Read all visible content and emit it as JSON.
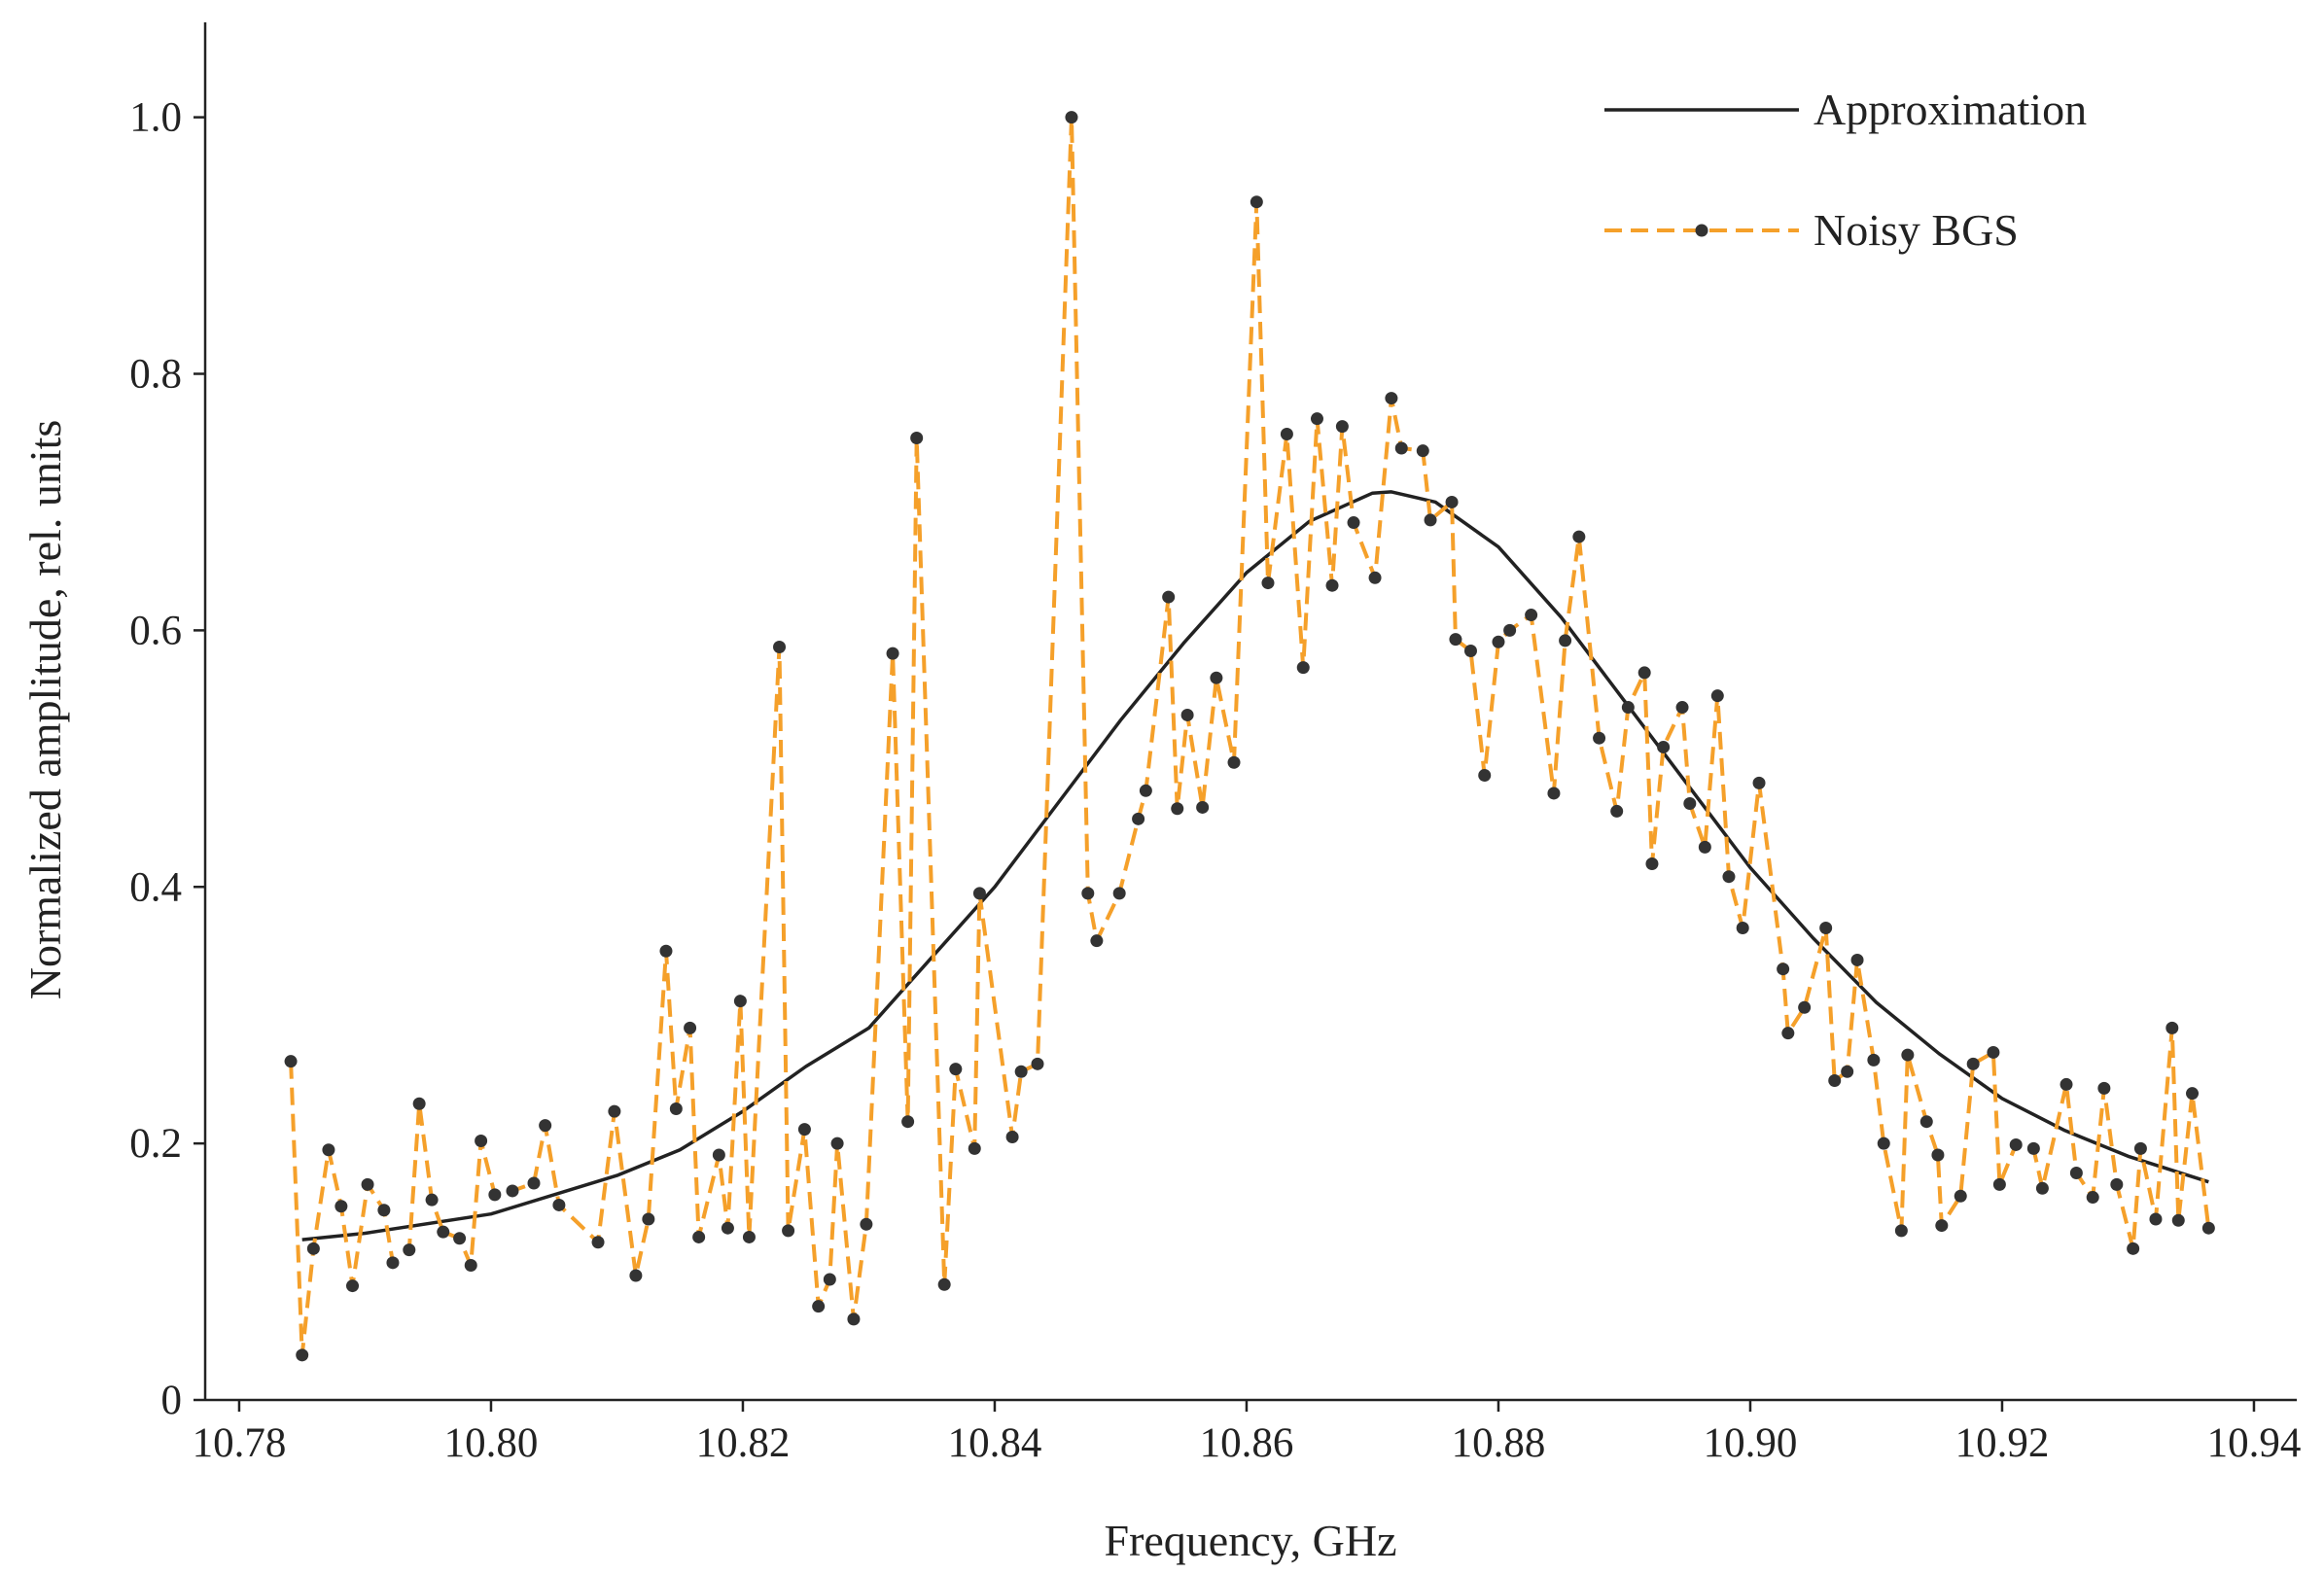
{
  "chart_data": {
    "type": "line",
    "xlabel": "Frequency, GHz",
    "ylabel": "Normalized amplitude, rel. units",
    "xlim": [
      10.7773,
      10.9434
    ],
    "ylim": [
      0,
      1.074
    ],
    "xticks": [
      {
        "value": 10.78,
        "label": "10.78"
      },
      {
        "value": 10.8,
        "label": "10.80"
      },
      {
        "value": 10.82,
        "label": "10.82"
      },
      {
        "value": 10.84,
        "label": "10.84"
      },
      {
        "value": 10.86,
        "label": "10.86"
      },
      {
        "value": 10.88,
        "label": "10.88"
      },
      {
        "value": 10.9,
        "label": "10.90"
      },
      {
        "value": 10.92,
        "label": "10.92"
      },
      {
        "value": 10.94,
        "label": "10.94"
      }
    ],
    "yticks": [
      0,
      0.2,
      0.4,
      0.6,
      0.8,
      {
        "value": 1,
        "label": "1.0"
      }
    ],
    "legend": "upper right",
    "series": [
      {
        "name": "Approximation",
        "color": "#222222",
        "style": "solid",
        "markers": false,
        "x": [
          10.785,
          10.79,
          10.8,
          10.81,
          10.815,
          10.82,
          10.825,
          10.83,
          10.835,
          10.84,
          10.845,
          10.85,
          10.855,
          10.86,
          10.865,
          10.87,
          10.8715,
          10.875,
          10.88,
          10.885,
          10.89,
          10.895,
          10.9,
          10.905,
          10.91,
          10.915,
          10.92,
          10.925,
          10.93,
          10.9364
        ],
        "values": [
          0.125,
          0.13,
          0.145,
          0.175,
          0.195,
          0.225,
          0.26,
          0.29,
          0.345,
          0.4,
          0.465,
          0.53,
          0.59,
          0.645,
          0.685,
          0.707,
          0.708,
          0.7,
          0.665,
          0.61,
          0.545,
          0.48,
          0.415,
          0.36,
          0.31,
          0.27,
          0.235,
          0.21,
          0.19,
          0.17
        ]
      },
      {
        "name": "Noisy BGS",
        "color": "#f5a02a",
        "style": "dashed",
        "markers": true,
        "x": [
          10.7841,
          10.785,
          10.7859,
          10.7871,
          10.7881,
          10.789,
          10.7902,
          10.7915,
          10.7922,
          10.7935,
          10.7943,
          10.7953,
          10.7962,
          10.7975,
          10.7984,
          10.7992,
          10.8003,
          10.8017,
          10.8034,
          10.8043,
          10.8054,
          10.8085,
          10.8098,
          10.8115,
          10.8125,
          10.8139,
          10.8147,
          10.8158,
          10.8165,
          10.8181,
          10.8188,
          10.8198,
          10.8205,
          10.8229,
          10.8236,
          10.8249,
          10.826,
          10.8269,
          10.8275,
          10.8288,
          10.8298,
          10.8319,
          10.8331,
          10.8338,
          10.836,
          10.8369,
          10.8384,
          10.8388,
          10.8414,
          10.8421,
          10.8434,
          10.8461,
          10.8474,
          10.8481,
          10.8499,
          10.8514,
          10.852,
          10.8538,
          10.8545,
          10.8553,
          10.8565,
          10.8576,
          10.859,
          10.8608,
          10.8617,
          10.8632,
          10.8645,
          10.8656,
          10.8668,
          10.8676,
          10.8685,
          10.8702,
          10.8715,
          10.8723,
          10.874,
          10.8746,
          10.8763,
          10.8766,
          10.8778,
          10.8789,
          10.88,
          10.8809,
          10.8826,
          10.8844,
          10.8853,
          10.8864,
          10.888,
          10.8894,
          10.8903,
          10.8916,
          10.8922,
          10.8931,
          10.8946,
          10.8952,
          10.8964,
          10.8974,
          10.8983,
          10.8994,
          10.9007,
          10.9026,
          10.903,
          10.9043,
          10.906,
          10.9067,
          10.9077,
          10.9085,
          10.9098,
          10.9106,
          10.912,
          10.9125,
          10.914,
          10.9149,
          10.9152,
          10.9167,
          10.9177,
          10.9193,
          10.9198,
          10.9211,
          10.9225,
          10.9232,
          10.9251,
          10.9259,
          10.9272,
          10.9281,
          10.9291,
          10.9304,
          10.931,
          10.9322,
          10.9335,
          10.934,
          10.9351,
          10.9364
        ],
        "values": [
          0.264,
          0.035,
          0.118,
          0.195,
          0.151,
          0.089,
          0.168,
          0.148,
          0.107,
          0.117,
          0.231,
          0.156,
          0.131,
          0.126,
          0.105,
          0.202,
          0.16,
          0.163,
          0.169,
          0.214,
          0.152,
          0.123,
          0.225,
          0.097,
          0.141,
          0.35,
          0.227,
          0.29,
          0.127,
          0.191,
          0.134,
          0.311,
          0.127,
          0.587,
          0.132,
          0.211,
          0.073,
          0.094,
          0.2,
          0.063,
          0.137,
          0.582,
          0.217,
          0.75,
          0.09,
          0.258,
          0.196,
          0.395,
          0.205,
          0.256,
          0.262,
          1.0,
          0.395,
          0.358,
          0.395,
          0.453,
          0.475,
          0.626,
          0.461,
          0.534,
          0.462,
          0.563,
          0.497,
          0.934,
          0.637,
          0.753,
          0.571,
          0.765,
          0.635,
          0.759,
          0.684,
          0.641,
          0.781,
          0.742,
          0.74,
          0.686,
          0.7,
          0.593,
          0.584,
          0.487,
          0.591,
          0.6,
          0.612,
          0.473,
          0.592,
          0.673,
          0.516,
          0.459,
          0.54,
          0.567,
          0.418,
          0.509,
          0.54,
          0.465,
          0.431,
          0.549,
          0.408,
          0.368,
          0.481,
          0.336,
          0.286,
          0.306,
          0.368,
          0.249,
          0.256,
          0.343,
          0.265,
          0.2,
          0.132,
          0.269,
          0.217,
          0.191,
          0.136,
          0.159,
          0.262,
          0.271,
          0.168,
          0.199,
          0.196,
          0.165,
          0.246,
          0.177,
          0.158,
          0.243,
          0.168,
          0.118,
          0.196,
          0.141,
          0.29,
          0.14,
          0.239,
          0.134
        ]
      }
    ]
  }
}
